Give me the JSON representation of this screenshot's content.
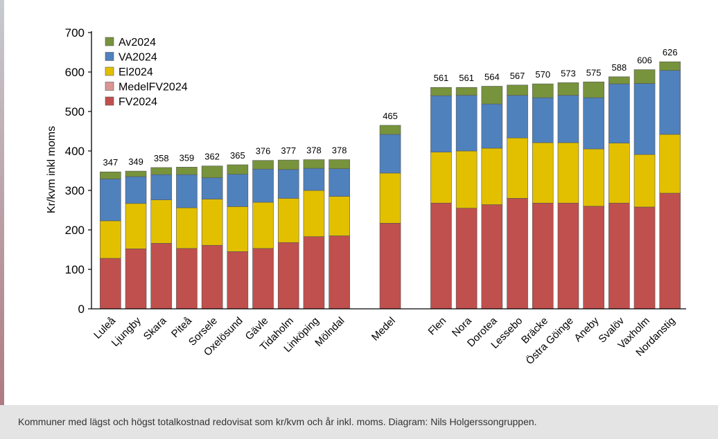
{
  "caption": "Kommuner med lägst och högst totalkostnad redovisat som kr/kvm och år inkl. moms. Diagram: Nils Holgerssongruppen.",
  "chart_data": {
    "type": "bar",
    "stacked": true,
    "ylabel": "Kr/kvm inkl moms",
    "ylim": [
      0,
      700
    ],
    "yticks": [
      0,
      100,
      200,
      300,
      400,
      500,
      600,
      700
    ],
    "grid": false,
    "legend_position": "top-left",
    "categories": [
      "Luleå",
      "Ljungby",
      "Skara",
      "Piteå",
      "Sorsele",
      "Oxelösund",
      "Gävle",
      "Tidaholm",
      "Linköping",
      "Mölndal",
      "",
      "Medel",
      "",
      "Flen",
      "Nora",
      "Dorotea",
      "Lessebo",
      "Bräcke",
      "Östra Göinge",
      "Aneby",
      "Svalöv",
      "Vaxholm",
      "Nordanstig"
    ],
    "totals": [
      347,
      349,
      358,
      359,
      362,
      365,
      376,
      377,
      378,
      378,
      null,
      465,
      null,
      561,
      561,
      564,
      567,
      570,
      573,
      575,
      588,
      606,
      626
    ],
    "series": [
      {
        "name": "FV2024",
        "color": "#c0504d",
        "values": [
          128,
          152,
          166,
          153,
          161,
          145,
          153,
          168,
          183,
          185,
          null,
          217,
          null,
          268,
          255,
          264,
          280,
          268,
          268,
          260,
          268,
          258,
          293
        ]
      },
      {
        "name": "MedelFV2024",
        "color": "#d99694",
        "values": [
          0,
          0,
          0,
          0,
          0,
          0,
          0,
          0,
          0,
          0,
          null,
          0,
          null,
          0,
          0,
          0,
          0,
          0,
          0,
          0,
          0,
          0,
          0
        ]
      },
      {
        "name": "El2024",
        "color": "#e2c000",
        "values": [
          95,
          115,
          110,
          103,
          117,
          114,
          117,
          112,
          117,
          100,
          null,
          127,
          null,
          129,
          145,
          143,
          153,
          153,
          153,
          145,
          152,
          133,
          149
        ]
      },
      {
        "name": "VA2024",
        "color": "#4f81bd",
        "values": [
          106,
          68,
          64,
          84,
          54,
          82,
          84,
          73,
          56,
          70,
          null,
          98,
          null,
          143,
          141,
          112,
          108,
          114,
          120,
          130,
          150,
          180,
          162
        ]
      },
      {
        "name": "Av2024",
        "color": "#77933c",
        "values": [
          18,
          14,
          18,
          19,
          30,
          24,
          22,
          24,
          22,
          23,
          null,
          23,
          null,
          21,
          20,
          45,
          26,
          35,
          32,
          40,
          18,
          35,
          22
        ]
      }
    ]
  }
}
